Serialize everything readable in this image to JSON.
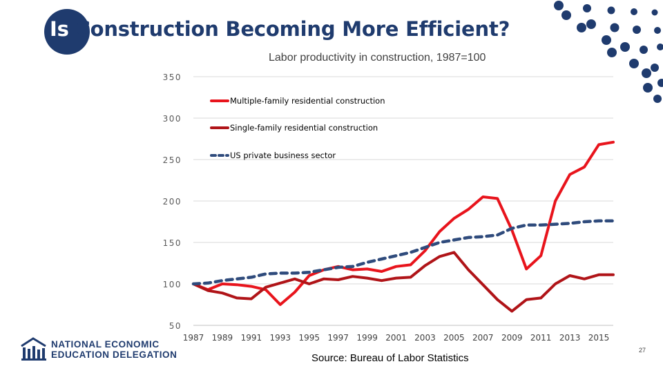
{
  "slide": {
    "title_first_word": "Is",
    "title_rest": " Construction Becoming More Efficient?",
    "subtitle": "Labor productivity in construction, 1987=100",
    "source": "Source: Bureau of Labor Statistics",
    "page_number": "27"
  },
  "logo": {
    "line1": "NATIONAL ECONOMIC",
    "line2": "EDUCATION DELEGATION",
    "icon": "columns-chart-logo-icon"
  },
  "decoration": {
    "icon": "blue-dot-pattern",
    "color": "#1f3b6e"
  },
  "chart_data": {
    "type": "line",
    "ylim": [
      50,
      350
    ],
    "yticks": [
      "50",
      "100",
      "150",
      "200",
      "250",
      "300",
      "350"
    ],
    "xticks": [
      "1987",
      "1989",
      "1991",
      "1993",
      "1995",
      "1997",
      "1999",
      "2001",
      "2003",
      "2005",
      "2007",
      "2009",
      "2011",
      "2013",
      "2015"
    ],
    "grid": true,
    "legend_position": "top-left",
    "x": [
      1987,
      1988,
      1989,
      1990,
      1991,
      1992,
      1993,
      1994,
      1995,
      1996,
      1997,
      1998,
      1999,
      2000,
      2001,
      2002,
      2003,
      2004,
      2005,
      2006,
      2007,
      2008,
      2009,
      2010,
      2011,
      2012,
      2013,
      2014,
      2015,
      2016
    ],
    "series": [
      {
        "name": "Multiple-family residential construction",
        "color": "#e8141c",
        "style": "solid",
        "values": [
          100,
          93,
          100,
          99,
          97,
          93,
          75,
          90,
          110,
          117,
          121,
          117,
          118,
          115,
          121,
          123,
          140,
          163,
          179,
          190,
          205,
          203,
          165,
          118,
          134,
          200,
          232,
          241,
          268,
          271
        ]
      },
      {
        "name": "Single-family residential construction",
        "color": "#b01418",
        "style": "solid",
        "values": [
          100,
          92,
          89,
          83,
          82,
          96,
          101,
          106,
          100,
          106,
          105,
          109,
          107,
          104,
          107,
          108,
          122,
          133,
          138,
          117,
          99,
          81,
          67,
          81,
          83,
          100,
          110,
          106,
          111,
          111
        ]
      },
      {
        "name": "US private business sector",
        "color": "#2f4b7c",
        "style": "dashed",
        "values": [
          100,
          101,
          104,
          106,
          108,
          112,
          113,
          113,
          114,
          117,
          120,
          121,
          126,
          130,
          134,
          138,
          144,
          150,
          153,
          156,
          157,
          159,
          167,
          171,
          171,
          172,
          173,
          175,
          176,
          176
        ]
      }
    ]
  }
}
